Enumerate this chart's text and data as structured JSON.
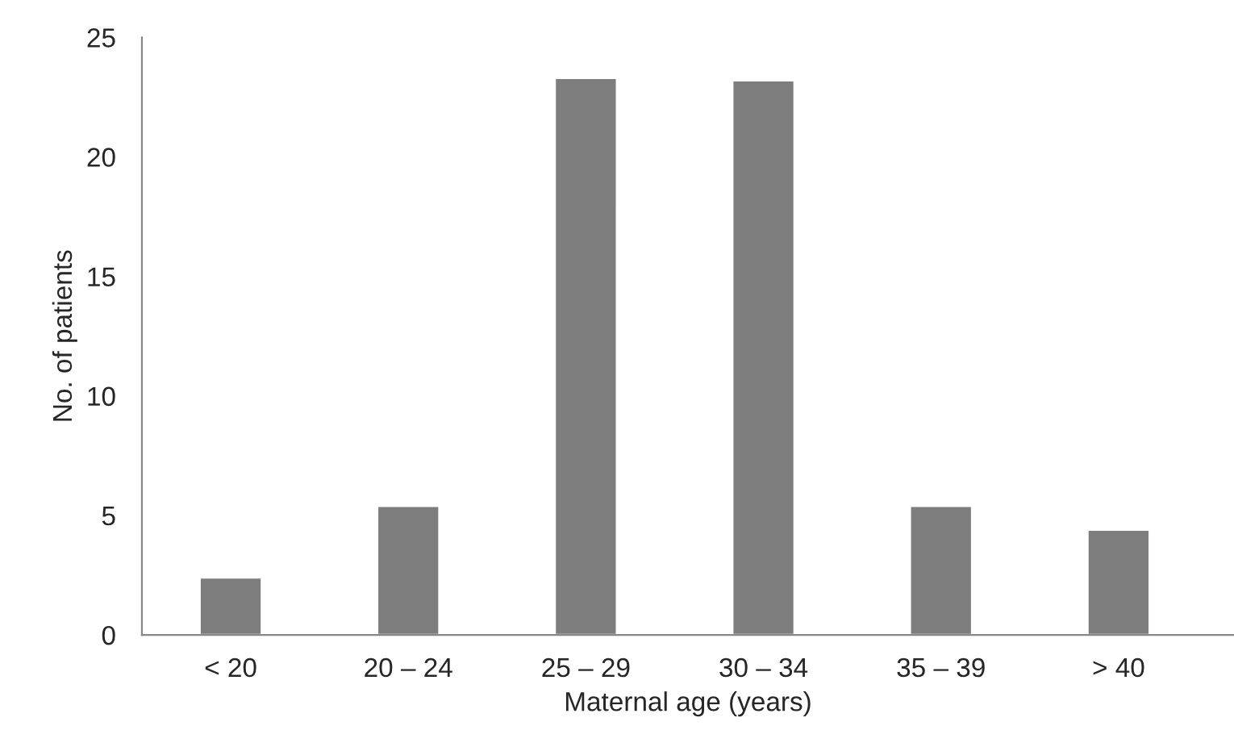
{
  "chart_data": {
    "type": "bar",
    "xlabel": "Maternal age (years)",
    "ylabel": "No. of patients",
    "categories": [
      "< 20",
      "20 – 24",
      "25 – 29",
      "30 – 34",
      "35 – 39",
      "> 40"
    ],
    "values": [
      2.4,
      5.4,
      23.3,
      23.2,
      5.4,
      4.4
    ],
    "color": "#7d7d7d",
    "ylim": [
      0,
      25
    ],
    "yticks": [
      0,
      5,
      10,
      15,
      20,
      25
    ],
    "grid": false,
    "legend": false
  }
}
